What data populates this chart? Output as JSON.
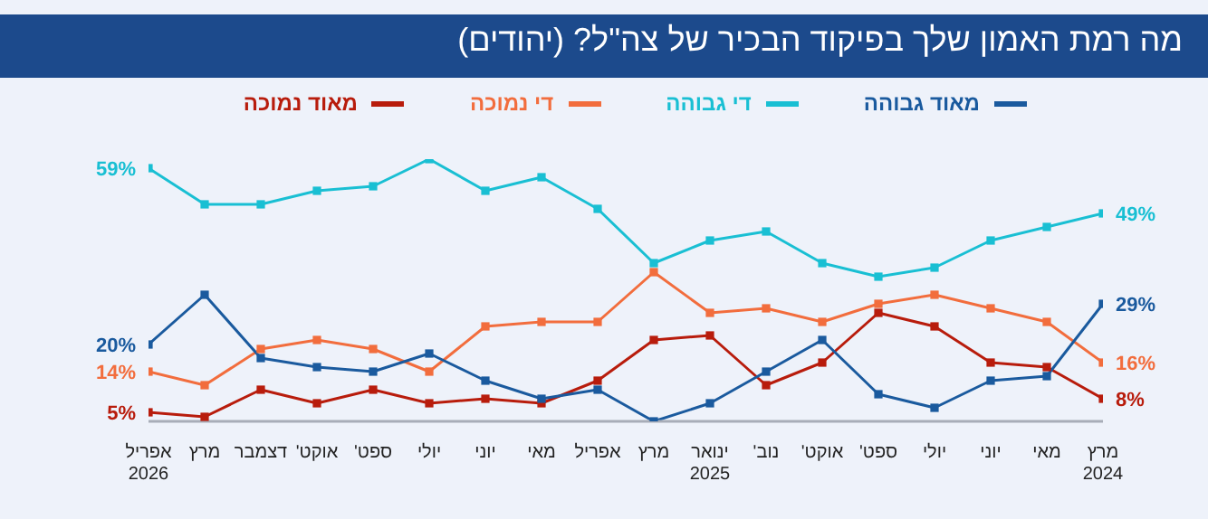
{
  "chart_data": {
    "type": "line",
    "title": "מה רמת האמון שלך בפיקוד הבכיר של צה\"ל? (יהודים)",
    "categories": [
      "אפריל\n2026",
      "מרץ",
      "דצמבר",
      "אוקט'",
      "ספט'",
      "יולי",
      "יוני",
      "מאי",
      "אפריל",
      "מרץ",
      "ינואר\n2025",
      "נוב'",
      "אוקט'",
      "ספט'",
      "יולי",
      "יוני",
      "מאי",
      "מרץ\n2024"
    ],
    "series": [
      {
        "name": "מאוד גבוהה",
        "color": "#1a5a9e",
        "values": [
          20,
          31,
          17,
          15,
          14,
          18,
          12,
          8,
          10,
          3,
          7,
          14,
          21,
          9,
          6,
          12,
          13,
          29
        ],
        "value_labels": [
          "20%",
          null,
          null,
          null,
          null,
          null,
          null,
          null,
          null,
          null,
          null,
          null,
          null,
          null,
          null,
          null,
          null,
          "29%"
        ]
      },
      {
        "name": "די גבוהה",
        "color": "#19bfd3",
        "values": [
          59,
          51,
          51,
          54,
          55,
          61,
          54,
          57,
          50,
          38,
          43,
          45,
          38,
          35,
          37,
          43,
          46,
          49
        ],
        "value_labels": [
          "59%",
          null,
          null,
          null,
          null,
          null,
          null,
          null,
          null,
          null,
          null,
          null,
          null,
          null,
          null,
          null,
          null,
          "49%"
        ]
      },
      {
        "name": "די נמוכה",
        "color": "#f26d3d",
        "values": [
          14,
          11,
          19,
          21,
          19,
          14,
          24,
          25,
          25,
          36,
          27,
          28,
          25,
          29,
          31,
          28,
          25,
          16
        ],
        "value_labels": [
          "14%",
          null,
          null,
          null,
          null,
          null,
          null,
          null,
          null,
          null,
          null,
          null,
          null,
          null,
          null,
          null,
          null,
          "16%"
        ]
      },
      {
        "name": "מאוד נמוכה",
        "color": "#b81c0c",
        "values": [
          5,
          4,
          10,
          7,
          10,
          7,
          8,
          7,
          12,
          21,
          22,
          11,
          16,
          27,
          24,
          16,
          15,
          8
        ],
        "value_labels": [
          "5%",
          null,
          null,
          null,
          null,
          null,
          null,
          null,
          null,
          null,
          null,
          null,
          null,
          null,
          null,
          null,
          null,
          "8%"
        ]
      }
    ],
    "grid": false,
    "legend": "top",
    "marker": "square",
    "line_style": "solid"
  }
}
